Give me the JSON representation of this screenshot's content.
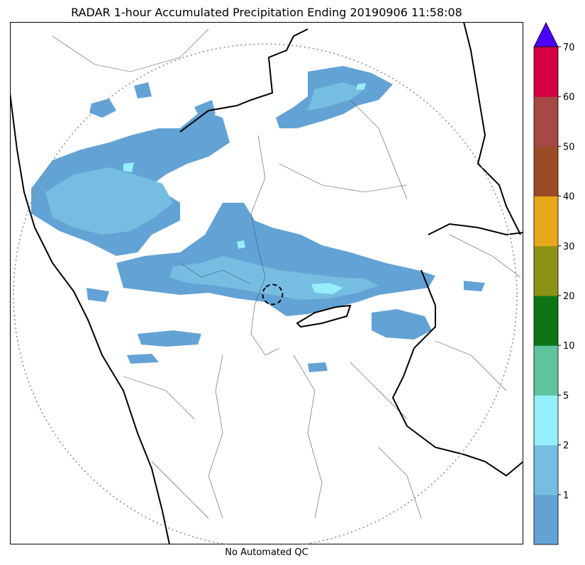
{
  "title": "RADAR 1-hour Accumulated Precipitation Ending 20190906 11:58:08",
  "footer": "No Automated QC",
  "colorbar": {
    "labels": [
      "1",
      "2",
      "5",
      "10",
      "20",
      "30",
      "40",
      "50",
      "60",
      "70"
    ],
    "colors": [
      "#63a2d5",
      "#76bde2",
      "#94eefc",
      "#5ec49b",
      "#0e7517",
      "#8c9216",
      "#e8a81b",
      "#9b4b26",
      "#a74845",
      "#d30044"
    ],
    "extend_color": "#4b00ff"
  },
  "colors": {
    "rain_light": "#63a2d5",
    "rain_mid": "#76bde2",
    "rain_heavy": "#94eefc",
    "state_border": "#000000",
    "district_border": "#555555",
    "range_ring": "#888888"
  }
}
